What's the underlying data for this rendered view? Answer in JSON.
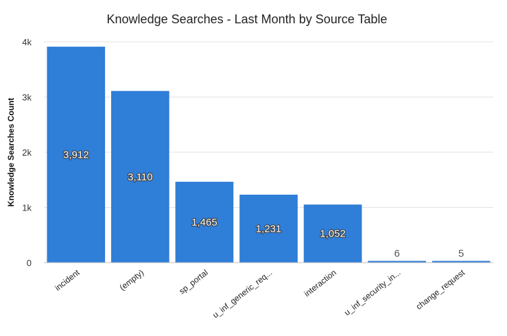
{
  "chart_data": {
    "type": "bar",
    "title": "Knowledge Searches - Last Month by Source Table",
    "xlabel": "",
    "ylabel": "Knowledge Searches Count",
    "categories": [
      "incident",
      "(empty)",
      "sp_portal",
      "u_inf_generic_req...",
      "interaction",
      "u_inf_security_in...",
      "change_request"
    ],
    "values": [
      3912,
      3110,
      1465,
      1231,
      1052,
      6,
      5
    ],
    "data_labels": [
      "3,912",
      "3,110",
      "1,465",
      "1,231",
      "1,052",
      "6",
      "5"
    ],
    "ylim": [
      0,
      4000
    ],
    "yticks": [
      0,
      1000,
      2000,
      3000,
      4000
    ],
    "ytick_labels": [
      "0",
      "1k",
      "2k",
      "3k",
      "4k"
    ],
    "grid": true,
    "legend": "none",
    "colors": {
      "bar": "#2f7ed8"
    }
  }
}
